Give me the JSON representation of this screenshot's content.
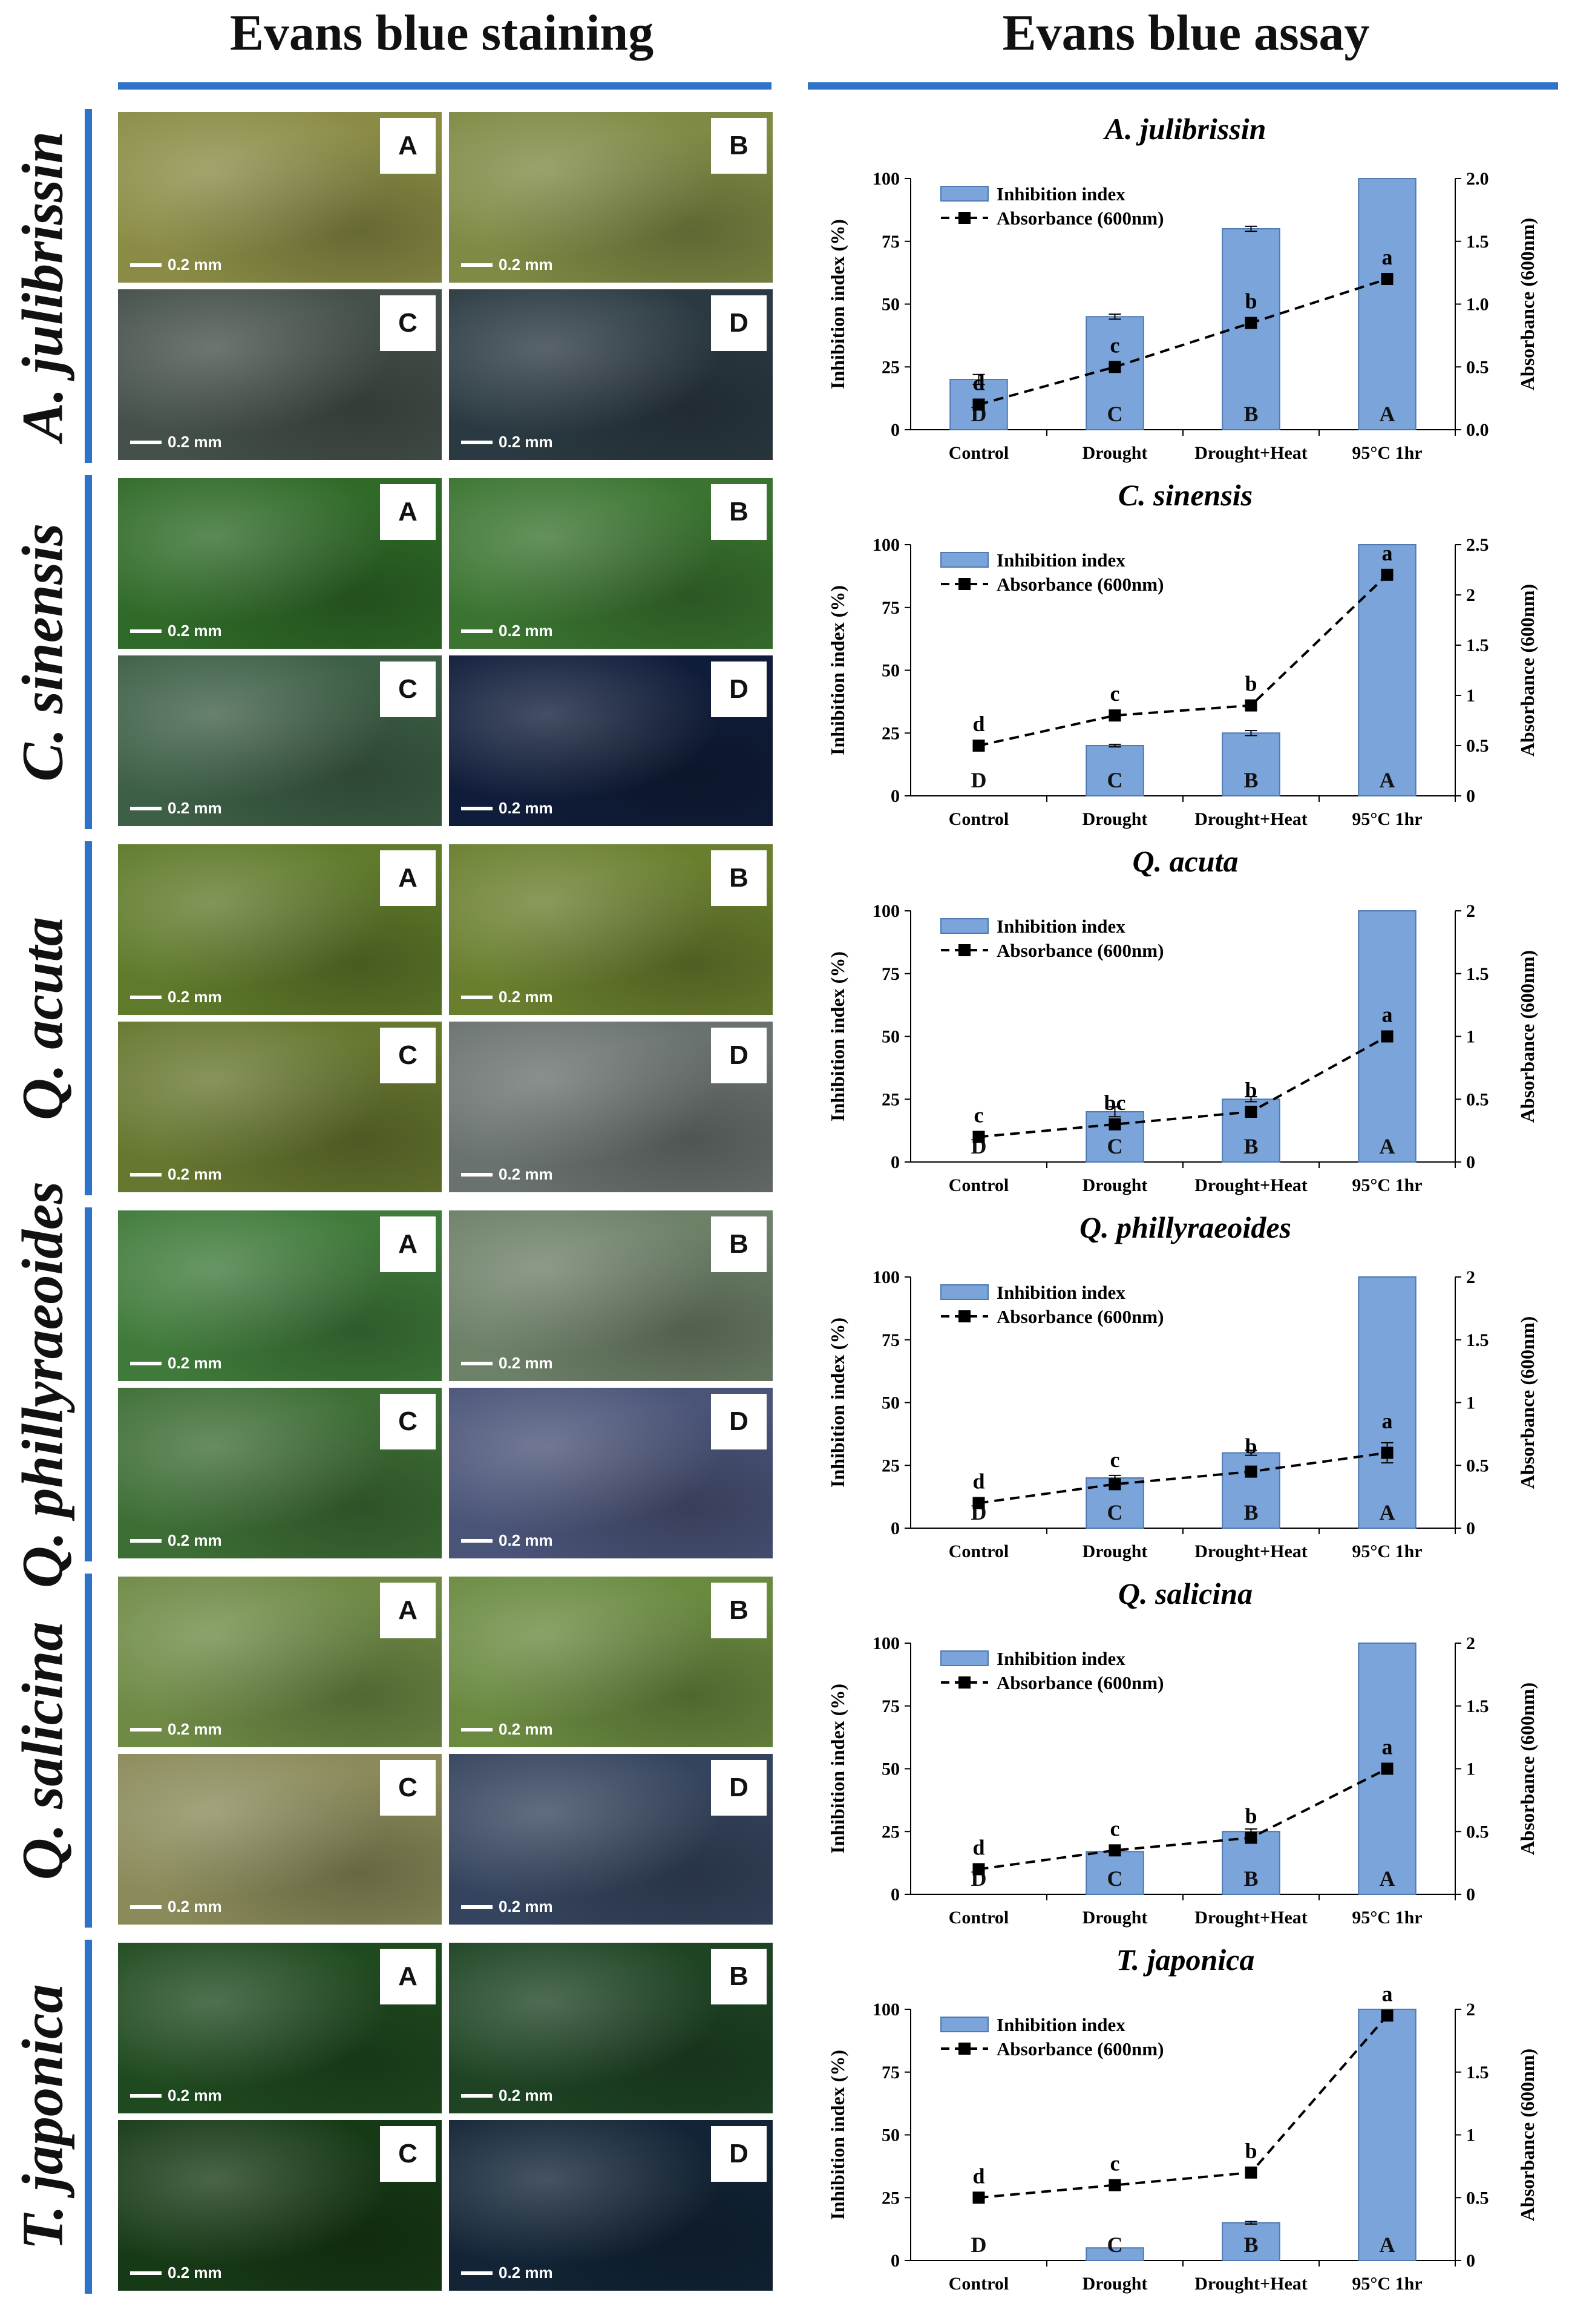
{
  "left_title": "Evans blue staining",
  "right_title": "Evans blue assay",
  "panels": [
    {
      "species": "A. julibrissin",
      "photos": [
        {
          "letter": "A",
          "scale": "0.2 mm",
          "bg": "#8a8c45"
        },
        {
          "letter": "B",
          "scale": "0.2 mm",
          "bg": "#7f8a44"
        },
        {
          "letter": "C",
          "scale": "0.2 mm",
          "bg": "#45504a"
        },
        {
          "letter": "D",
          "scale": "0.2 mm",
          "bg": "#2b3a42"
        }
      ]
    },
    {
      "species": "C. sinensis",
      "photos": [
        {
          "letter": "A",
          "scale": "0.2 mm",
          "bg": "#2f6a28"
        },
        {
          "letter": "B",
          "scale": "0.2 mm",
          "bg": "#3a7430"
        },
        {
          "letter": "C",
          "scale": "0.2 mm",
          "bg": "#3d5f45"
        },
        {
          "letter": "D",
          "scale": "0.2 mm",
          "bg": "#101d3a"
        }
      ]
    },
    {
      "species": "Q. acuta",
      "photos": [
        {
          "letter": "A",
          "scale": "0.2 mm",
          "bg": "#5f7a2a"
        },
        {
          "letter": "B",
          "scale": "0.2 mm",
          "bg": "#6a7f2e"
        },
        {
          "letter": "C",
          "scale": "0.2 mm",
          "bg": "#66772f"
        },
        {
          "letter": "D",
          "scale": "0.2 mm",
          "bg": "#6a7270"
        }
      ]
    },
    {
      "species": "Q. phillyraeoides",
      "photos": [
        {
          "letter": "A",
          "scale": "0.2 mm",
          "bg": "#3f7a3a"
        },
        {
          "letter": "B",
          "scale": "0.2 mm",
          "bg": "#6d8068"
        },
        {
          "letter": "C",
          "scale": "0.2 mm",
          "bg": "#3d6e35"
        },
        {
          "letter": "D",
          "scale": "0.2 mm",
          "bg": "#4a5478"
        }
      ]
    },
    {
      "species": "Q. salicina",
      "photos": [
        {
          "letter": "A",
          "scale": "0.2 mm",
          "bg": "#6e8a45"
        },
        {
          "letter": "B",
          "scale": "0.2 mm",
          "bg": "#6a8a40"
        },
        {
          "letter": "C",
          "scale": "0.2 mm",
          "bg": "#8a8a5a"
        },
        {
          "letter": "D",
          "scale": "0.2 mm",
          "bg": "#35445e"
        }
      ]
    },
    {
      "species": "T. japonica",
      "photos": [
        {
          "letter": "A",
          "scale": "0.2 mm",
          "bg": "#1f4a1f"
        },
        {
          "letter": "B",
          "scale": "0.2 mm",
          "bg": "#1e4424"
        },
        {
          "letter": "C",
          "scale": "0.2 mm",
          "bg": "#173a16"
        },
        {
          "letter": "D",
          "scale": "0.2 mm",
          "bg": "#122436"
        }
      ]
    }
  ],
  "colors": {
    "bar": "#7aa4da",
    "bar_edge": "#4f79b3",
    "rule": "#2f73c9"
  },
  "chart_data": [
    {
      "type": "bar",
      "title": "A. julibrissin",
      "categories": [
        "Control",
        "Drought",
        "Drought+Heat",
        "95°C 1hr"
      ],
      "ylabel": "Inhibition index (%)",
      "y2label": "Absorbance (600nm)",
      "ylim": [
        0,
        100
      ],
      "yticks": [
        "0",
        "25",
        "50",
        "75",
        "100"
      ],
      "y2lim": [
        0,
        2
      ],
      "y2ticks": [
        "0.0",
        "0.5",
        "1.0",
        "1.5",
        "2.0"
      ],
      "legend": [
        "Inhibition index",
        "Absorbance (600nm)"
      ],
      "series": [
        {
          "name": "Inhibition index",
          "values": [
            20,
            45,
            80,
            100
          ],
          "errors": [
            2,
            1,
            1,
            0
          ],
          "letters": [
            "D",
            "C",
            "B",
            "A"
          ]
        },
        {
          "name": "Absorbance (600nm)",
          "values": [
            0.2,
            0.5,
            0.85,
            1.2
          ],
          "letters": [
            "d",
            "c",
            "b",
            "a"
          ]
        }
      ]
    },
    {
      "type": "bar",
      "title": "C. sinensis",
      "categories": [
        "Control",
        "Drought",
        "Drought+Heat",
        "95°C 1hr"
      ],
      "ylabel": "Inhibition index (%)",
      "y2label": "Absorbance (600nm)",
      "ylim": [
        0,
        100
      ],
      "yticks": [
        "0",
        "25",
        "50",
        "75",
        "100"
      ],
      "y2lim": [
        0,
        2.5
      ],
      "y2ticks": [
        "0",
        "0.5",
        "1",
        "1.5",
        "2",
        "2.5"
      ],
      "legend": [
        "Inhibition index",
        "Absorbance (600nm)"
      ],
      "series": [
        {
          "name": "Inhibition index",
          "values": [
            0,
            20,
            25,
            100
          ],
          "errors": [
            0,
            0.5,
            1,
            0
          ],
          "letters": [
            "D",
            "C",
            "B",
            "A"
          ]
        },
        {
          "name": "Absorbance (600nm)",
          "values": [
            0.5,
            0.8,
            0.9,
            2.2
          ],
          "letters": [
            "d",
            "c",
            "b",
            "a"
          ]
        }
      ]
    },
    {
      "type": "bar",
      "title": "Q. acuta",
      "categories": [
        "Control",
        "Drought",
        "Drought+Heat",
        "95°C 1hr"
      ],
      "ylabel": "Inhibition index (%)",
      "y2label": "Absorbance (600nm)",
      "ylim": [
        0,
        100
      ],
      "yticks": [
        "0",
        "25",
        "50",
        "75",
        "100"
      ],
      "y2lim": [
        0,
        2
      ],
      "y2ticks": [
        "0",
        "0.5",
        "1",
        "1.5",
        "2"
      ],
      "legend": [
        "Inhibition index",
        "Absorbance (600nm)"
      ],
      "series": [
        {
          "name": "Inhibition index",
          "values": [
            0,
            20,
            25,
            100
          ],
          "errors": [
            0,
            2,
            1,
            0
          ],
          "letters": [
            "D",
            "C",
            "B",
            "A"
          ]
        },
        {
          "name": "Absorbance (600nm)",
          "values": [
            0.2,
            0.3,
            0.4,
            1.0
          ],
          "letters": [
            "c",
            "bc",
            "b",
            "a"
          ]
        }
      ]
    },
    {
      "type": "bar",
      "title": "Q. phillyraeoides",
      "categories": [
        "Control",
        "Drought",
        "Drought+Heat",
        "95°C 1hr"
      ],
      "ylabel": "Inhibition index (%)",
      "y2label": "Absorbance (600nm)",
      "ylim": [
        0,
        100
      ],
      "yticks": [
        "0",
        "25",
        "50",
        "75",
        "100"
      ],
      "y2lim": [
        0,
        2
      ],
      "y2ticks": [
        "0",
        "0.5",
        "1",
        "1.5",
        "2"
      ],
      "legend": [
        "Inhibition index",
        "Absorbance (600nm)"
      ],
      "series": [
        {
          "name": "Inhibition index",
          "values": [
            0,
            20,
            30,
            100
          ],
          "errors": [
            0,
            1,
            1,
            0
          ],
          "letters": [
            "D",
            "C",
            "B",
            "A"
          ]
        },
        {
          "name": "Absorbance (600nm)",
          "values": [
            0.2,
            0.35,
            0.45,
            0.6
          ],
          "errors": [
            0,
            0.02,
            0.03,
            0.08
          ],
          "letters": [
            "d",
            "c",
            "b",
            "a"
          ]
        }
      ]
    },
    {
      "type": "bar",
      "title": "Q. salicina",
      "categories": [
        "Control",
        "Drought",
        "Drought+Heat",
        "95°C 1hr"
      ],
      "ylabel": "Inhibition index (%)",
      "y2label": "Absorbance (600nm)",
      "ylim": [
        0,
        100
      ],
      "yticks": [
        "0",
        "25",
        "50",
        "75",
        "100"
      ],
      "y2lim": [
        0,
        2
      ],
      "y2ticks": [
        "0",
        "0.5",
        "1",
        "1.5",
        "2"
      ],
      "legend": [
        "Inhibition index",
        "Absorbance (600nm)"
      ],
      "series": [
        {
          "name": "Inhibition index",
          "values": [
            0,
            17,
            25,
            100
          ],
          "errors": [
            0,
            0.5,
            1,
            0
          ],
          "letters": [
            "D",
            "C",
            "B",
            "A"
          ]
        },
        {
          "name": "Absorbance (600nm)",
          "values": [
            0.2,
            0.35,
            0.45,
            1.0
          ],
          "letters": [
            "d",
            "c",
            "b",
            "a"
          ]
        }
      ]
    },
    {
      "type": "bar",
      "title": "T. japonica",
      "categories": [
        "Control",
        "Drought",
        "Drought+Heat",
        "95°C 1hr"
      ],
      "ylabel": "Inhibition index (%)",
      "y2label": "Absorbance (600nm)",
      "ylim": [
        0,
        100
      ],
      "yticks": [
        "0",
        "25",
        "50",
        "75",
        "100"
      ],
      "y2lim": [
        0,
        2
      ],
      "y2ticks": [
        "0",
        "0.5",
        "1",
        "1.5",
        "2"
      ],
      "legend": [
        "Inhibition index",
        "Absorbance (600nm)"
      ],
      "series": [
        {
          "name": "Inhibition index",
          "values": [
            0,
            5,
            15,
            100
          ],
          "errors": [
            0,
            0,
            0.5,
            0
          ],
          "letters": [
            "D",
            "C",
            "B",
            "A"
          ]
        },
        {
          "name": "Absorbance (600nm)",
          "values": [
            0.5,
            0.6,
            0.7,
            1.95
          ],
          "letters": [
            "d",
            "c",
            "b",
            "a"
          ]
        }
      ]
    }
  ]
}
